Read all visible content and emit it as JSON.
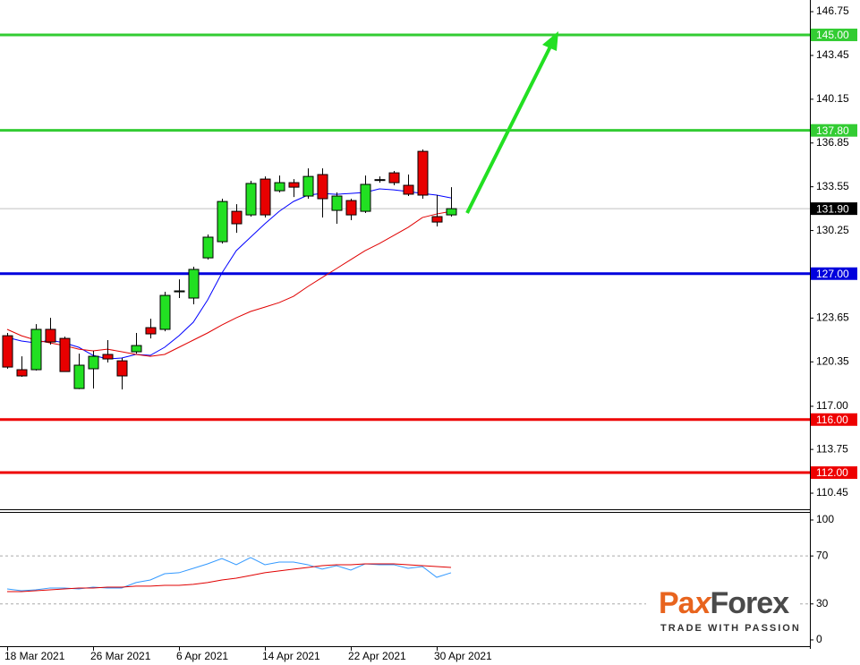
{
  "chart_data": [
    {
      "type": "candlestick",
      "categories": [
        "18 Mar 2021",
        null,
        null,
        null,
        null,
        null,
        "26 Mar 2021",
        null,
        null,
        null,
        null,
        null,
        "6 Apr 2021",
        null,
        null,
        null,
        null,
        null,
        "14 Apr 2021",
        null,
        null,
        null,
        null,
        null,
        "22 Apr 2021",
        null,
        null,
        null,
        null,
        null,
        "30 Apr 2021",
        null
      ],
      "open": [
        122.32,
        119.76,
        119.76,
        122.8,
        122.12,
        118.34,
        119.83,
        120.91,
        120.43,
        121.11,
        122.93,
        122.8,
        125.63,
        125.16,
        128.19,
        129.41,
        131.7,
        131.43,
        134.13,
        133.25,
        133.86,
        132.85,
        134.47,
        131.77,
        132.51,
        131.7,
        134.06,
        134.6,
        133.66,
        136.22,
        131.3,
        131.43
      ],
      "high": [
        122.53,
        120.77,
        123.2,
        123.67,
        122.25,
        120.97,
        121.18,
        121.99,
        120.64,
        122.53,
        123.6,
        125.63,
        126.57,
        127.52,
        129.95,
        132.65,
        132.24,
        134.0,
        134.33,
        134.4,
        134.13,
        134.94,
        134.94,
        133.12,
        132.65,
        134.4,
        134.33,
        134.74,
        134.47,
        136.36,
        132.92,
        133.52
      ],
      "low": [
        119.83,
        119.22,
        119.7,
        121.65,
        119.6,
        118.3,
        118.34,
        120.3,
        118.27,
        120.97,
        122.12,
        122.66,
        125.16,
        124.69,
        128.06,
        129.27,
        130.08,
        131.3,
        131.23,
        133.12,
        132.78,
        132.65,
        131.23,
        130.76,
        131.03,
        131.57,
        133.86,
        133.66,
        132.85,
        132.65,
        130.56,
        131.3
      ],
      "close": [
        119.96,
        119.29,
        122.8,
        121.85,
        119.62,
        120.1,
        120.77,
        120.57,
        119.29,
        121.58,
        122.46,
        125.36,
        125.7,
        127.32,
        129.75,
        132.44,
        130.76,
        133.8,
        131.43,
        133.86,
        133.52,
        134.33,
        132.65,
        132.85,
        131.43,
        133.73,
        134.09,
        133.86,
        132.99,
        132.92,
        130.89,
        131.9
      ],
      "up_color": "#22e022",
      "down_color": "#e80000",
      "series": [
        {
          "color": "#0000ff",
          "values": [
            122.19,
            121.92,
            121.78,
            121.99,
            121.78,
            121.45,
            120.84,
            120.57,
            120.64,
            120.91,
            120.84,
            121.45,
            122.32,
            123.34,
            125.02,
            127.05,
            128.73,
            129.75,
            130.76,
            131.7,
            132.44,
            132.92,
            133.05,
            132.98,
            133.05,
            133.12,
            133.39,
            133.32,
            133.19,
            133.05,
            132.92,
            132.71
          ]
        },
        {
          "color": "#e00000",
          "values": [
            122.8,
            122.32,
            121.99,
            121.78,
            121.58,
            121.31,
            121.18,
            121.31,
            121.11,
            120.91,
            120.77,
            120.91,
            121.45,
            121.99,
            122.53,
            123.13,
            123.67,
            124.15,
            124.48,
            124.82,
            125.29,
            126.03,
            126.71,
            127.38,
            128.06,
            128.73,
            129.27,
            129.88,
            130.49,
            131.23,
            131.5,
            131.7
          ]
        }
      ],
      "ylim": [
        109.17,
        147.63
      ],
      "yticks": [
        110.45,
        113.75,
        {
          "value": 117,
          "label": "117.00"
        },
        120.35,
        123.65,
        130.25,
        133.55,
        136.85,
        140.15,
        143.45,
        146.75
      ],
      "levels": [
        {
          "value": 145,
          "label": "145.00",
          "color": "#33cc33"
        },
        {
          "value": 137.8,
          "label": "137.80",
          "color": "#33cc33"
        },
        {
          "value": 127,
          "label": "127.00",
          "color": "#0000dd"
        },
        {
          "value": 116,
          "label": "116.00",
          "color": "#ee0000"
        },
        {
          "value": 112,
          "label": "112.00",
          "color": "#ee0000"
        }
      ],
      "last_price": {
        "value": 131.9,
        "label": "131.90",
        "line_color": "#c0c0c0",
        "box_color": "#000000"
      }
    },
    {
      "type": "line",
      "series": [
        {
          "color": "#3399ff",
          "values": [
            42.5,
            41.0,
            41.8,
            43.3,
            43.3,
            42.5,
            44.0,
            43.3,
            43.3,
            47.8,
            50.0,
            55.2,
            56.0,
            59.7,
            63.4,
            67.9,
            62.7,
            68.7,
            62.7,
            64.9,
            64.9,
            62.7,
            59.0,
            61.9,
            58.2,
            63.4,
            62.7,
            62.7,
            59.7,
            61.2,
            52.2,
            56.0
          ]
        },
        {
          "color": "#e00000",
          "values": [
            40.3,
            40.3,
            41.0,
            41.8,
            42.5,
            43.3,
            43.3,
            44.0,
            44.0,
            44.8,
            44.8,
            45.5,
            45.5,
            46.3,
            47.8,
            50.0,
            51.5,
            53.7,
            56.0,
            57.5,
            59.0,
            60.4,
            61.9,
            62.7,
            62.7,
            63.4,
            63.4,
            63.4,
            62.7,
            61.9,
            61.2,
            60.4
          ]
        }
      ],
      "ylim": [
        -7.5,
        106.7
      ],
      "yticks": [
        0,
        30,
        70,
        100
      ],
      "dashed_grid": [
        30,
        70
      ]
    }
  ],
  "logo": {
    "brand_parts": [
      "Pa",
      "x",
      "Forex"
    ],
    "tagline": "TRADE WITH PASSION"
  }
}
